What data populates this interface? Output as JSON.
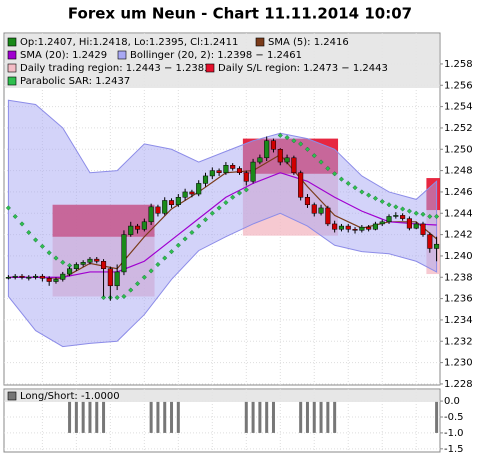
{
  "chart_data": [
    {
      "type": "candlestick",
      "title": "Forex um Neun - Chart 11.11.2014 10:07",
      "ylim": [
        1.2279,
        1.2609
      ],
      "yticks": [
        {
          "value": 1.228,
          "label": "1.228"
        },
        {
          "value": 1.23,
          "label": "1.230"
        },
        {
          "value": 1.232,
          "label": "1.232"
        },
        {
          "value": 1.234,
          "label": "1.234"
        },
        {
          "value": 1.236,
          "label": "1.236"
        },
        {
          "value": 1.238,
          "label": "1.238"
        },
        {
          "value": 1.24,
          "label": "1.240"
        },
        {
          "value": 1.242,
          "label": "1.242"
        },
        {
          "value": 1.244,
          "label": "1.244"
        },
        {
          "value": 1.246,
          "label": "1.246"
        },
        {
          "value": 1.248,
          "label": "1.248"
        },
        {
          "value": 1.25,
          "label": "1.250"
        },
        {
          "value": 1.252,
          "label": "1.252"
        },
        {
          "value": 1.254,
          "label": "1.254"
        },
        {
          "value": 1.256,
          "label": "1.256"
        },
        {
          "value": 1.258,
          "label": "1.258"
        }
      ],
      "grid": true,
      "ohlc": {
        "name": "Op:1.2407, Hi:1.2418, Lo:1.2395, Cl:1.2411",
        "color": "#1a8a1a",
        "down_color": "#d00000",
        "open": [
          1.238,
          1.238,
          1.2381,
          1.238,
          1.238,
          1.2381,
          1.2379,
          1.2376,
          1.2378,
          1.2383,
          1.2388,
          1.2392,
          1.2394,
          1.2397,
          1.2395,
          1.2388,
          1.2372,
          1.2385,
          1.242,
          1.2428,
          1.2425,
          1.2432,
          1.2446,
          1.244,
          1.2452,
          1.2448,
          1.2455,
          1.246,
          1.2458,
          1.2468,
          1.2475,
          1.248,
          1.2478,
          1.2485,
          1.2482,
          1.2478,
          1.247,
          1.2488,
          1.2492,
          1.2508,
          1.25,
          1.2488,
          1.2492,
          1.2478,
          1.2455,
          1.2448,
          1.244,
          1.2445,
          1.243,
          1.2425,
          1.2428,
          1.2425,
          1.2424,
          1.2427,
          1.2425,
          1.243,
          1.2432,
          1.2437,
          1.2438,
          1.2435,
          1.2426,
          1.243,
          1.242,
          1.2407
        ],
        "high": [
          1.2382,
          1.2383,
          1.2383,
          1.2382,
          1.2383,
          1.2383,
          1.2381,
          1.238,
          1.2385,
          1.239,
          1.2394,
          1.2396,
          1.2399,
          1.2399,
          1.2397,
          1.239,
          1.2392,
          1.2424,
          1.2432,
          1.243,
          1.2435,
          1.2449,
          1.2448,
          1.2455,
          1.2454,
          1.2458,
          1.2463,
          1.2462,
          1.2471,
          1.2478,
          1.2483,
          1.2482,
          1.2488,
          1.2487,
          1.2484,
          1.248,
          1.2491,
          1.2495,
          1.2512,
          1.251,
          1.2501,
          1.2495,
          1.2494,
          1.248,
          1.2458,
          1.245,
          1.2448,
          1.2447,
          1.2433,
          1.243,
          1.243,
          1.2427,
          1.2429,
          1.2429,
          1.2432,
          1.2434,
          1.2439,
          1.2441,
          1.244,
          1.2437,
          1.2432,
          1.2432,
          1.2422,
          1.2418
        ],
        "low": [
          1.2378,
          1.2378,
          1.2378,
          1.2377,
          1.2378,
          1.2376,
          1.2372,
          1.2374,
          1.2376,
          1.2381,
          1.2386,
          1.239,
          1.2392,
          1.2393,
          1.2362,
          1.2358,
          1.2368,
          1.2382,
          1.2418,
          1.2421,
          1.2423,
          1.2429,
          1.2437,
          1.2438,
          1.2445,
          1.2446,
          1.2452,
          1.2455,
          1.2456,
          1.2465,
          1.2472,
          1.2475,
          1.2476,
          1.248,
          1.2476,
          1.2466,
          1.2468,
          1.2486,
          1.2489,
          1.2497,
          1.2485,
          1.2486,
          1.2476,
          1.2452,
          1.2445,
          1.2437,
          1.2438,
          1.2428,
          1.2422,
          1.2423,
          1.2422,
          1.2421,
          1.2422,
          1.2423,
          1.2424,
          1.2428,
          1.243,
          1.2435,
          1.2433,
          1.2424,
          1.2425,
          1.2418,
          1.2403,
          1.2395
        ],
        "close": [
          1.238,
          1.2381,
          1.238,
          1.238,
          1.2381,
          1.2379,
          1.2376,
          1.2378,
          1.2383,
          1.2388,
          1.2392,
          1.2394,
          1.2397,
          1.2395,
          1.2388,
          1.2372,
          1.2385,
          1.242,
          1.2428,
          1.2425,
          1.2432,
          1.2446,
          1.244,
          1.2452,
          1.2448,
          1.2455,
          1.246,
          1.2458,
          1.2468,
          1.2475,
          1.248,
          1.2478,
          1.2485,
          1.2482,
          1.2478,
          1.247,
          1.2488,
          1.2492,
          1.2508,
          1.25,
          1.2488,
          1.2492,
          1.2478,
          1.2455,
          1.2448,
          1.244,
          1.2445,
          1.243,
          1.2425,
          1.2428,
          1.2425,
          1.2424,
          1.2427,
          1.2425,
          1.243,
          1.2432,
          1.2437,
          1.2438,
          1.2435,
          1.2426,
          1.243,
          1.242,
          1.2407,
          1.2411
        ]
      },
      "lines": [
        {
          "name": "SMA (5): 1.2416",
          "color": "#7a3b1a",
          "x": [
            0,
            4,
            8,
            12,
            16,
            20,
            24,
            28,
            32,
            36,
            40,
            44,
            48,
            52,
            56,
            60,
            63
          ],
          "values": [
            1.238,
            1.238,
            1.2379,
            1.2393,
            1.2388,
            1.2418,
            1.2444,
            1.246,
            1.2478,
            1.248,
            1.2495,
            1.2465,
            1.2438,
            1.2426,
            1.2432,
            1.2432,
            1.2416
          ]
        },
        {
          "name": "SMA (20): 1.2429",
          "color": "#a000d0",
          "x": [
            0,
            4,
            8,
            12,
            16,
            20,
            24,
            28,
            32,
            36,
            40,
            44,
            48,
            52,
            56,
            60,
            63
          ],
          "values": [
            1.238,
            1.238,
            1.238,
            1.2385,
            1.2385,
            1.2395,
            1.2415,
            1.2435,
            1.2455,
            1.2468,
            1.2478,
            1.247,
            1.2455,
            1.2442,
            1.2432,
            1.243,
            1.2429
          ]
        }
      ],
      "bands": [
        {
          "name": "Bollinger (20, 2): 1.2398 − 1.2461",
          "color": "#a8a8f4",
          "x": [
            0,
            4,
            8,
            12,
            16,
            20,
            24,
            28,
            32,
            36,
            40,
            44,
            48,
            52,
            56,
            60,
            63
          ],
          "upper": [
            1.2546,
            1.2542,
            1.252,
            1.2478,
            1.248,
            1.2505,
            1.25,
            1.2488,
            1.2498,
            1.2508,
            1.2515,
            1.251,
            1.25,
            1.2475,
            1.246,
            1.2453,
            1.247
          ],
          "lower": [
            1.2362,
            1.233,
            1.2315,
            1.2318,
            1.232,
            1.2345,
            1.2378,
            1.2405,
            1.2418,
            1.243,
            1.244,
            1.2428,
            1.241,
            1.2404,
            1.2402,
            1.2395,
            1.2385
          ]
        }
      ],
      "regions": [
        {
          "name": "Daily trading region: 1.2443 − 1.2383",
          "color": "#f4bcc6",
          "areas": [
            {
              "x": [
                7,
                21
              ],
              "high": 1.242,
              "low": 1.2362
            },
            {
              "x": [
                35,
                48
              ],
              "high": 1.2477,
              "low": 1.2419
            },
            {
              "x": [
                62,
                63
              ],
              "high": 1.2443,
              "low": 1.2383
            }
          ]
        },
        {
          "name": "Daily S/L region: 1.2473 − 1.2443",
          "color": "#e4102c",
          "areas": [
            {
              "x": [
                7,
                21
              ],
              "high": 1.2448,
              "low": 1.2418
            },
            {
              "x": [
                35,
                48
              ],
              "high": 1.251,
              "low": 1.2477
            },
            {
              "x": [
                62,
                63
              ],
              "high": 1.2473,
              "low": 1.2443
            }
          ]
        }
      ],
      "sar": {
        "name": "Parabolic SAR: 1.2437",
        "color": "#2fbf4f",
        "values": [
          1.2445,
          1.2437,
          1.243,
          1.2422,
          1.2415,
          1.2409,
          1.2403,
          1.2398,
          1.2394,
          1.2391,
          null,
          null,
          null,
          null,
          1.2361,
          1.2361,
          1.2361,
          1.2362,
          1.2368,
          1.2374,
          1.238,
          1.2386,
          1.2392,
          1.2398,
          1.2404,
          1.241,
          1.2416,
          1.2422,
          1.2428,
          1.2434,
          1.244,
          1.2445,
          1.245,
          1.2455,
          1.2459,
          1.2462,
          null,
          null,
          null,
          null,
          1.2513,
          1.2511,
          1.2508,
          1.2505,
          1.25,
          1.2494,
          1.2488,
          1.2482,
          1.2477,
          1.2472,
          1.2468,
          1.2464,
          1.246,
          1.2457,
          1.2454,
          1.2451,
          1.2448,
          1.2446,
          1.2444,
          1.2442,
          1.244,
          1.2439,
          1.2437,
          1.2437
        ]
      }
    },
    {
      "type": "bar",
      "ylim": [
        -1.6,
        0.38
      ],
      "yticks": [
        {
          "value": 0,
          "label": "0.0"
        },
        {
          "value": -0.5,
          "label": "-0.5"
        },
        {
          "value": -1,
          "label": "-1.0"
        },
        {
          "value": -1.5,
          "label": "-1.5"
        }
      ],
      "series": [
        {
          "name": "Long/Short: -1.0000",
          "color": "#777777",
          "values": [
            0,
            0,
            0,
            0,
            0,
            0,
            0,
            0,
            0,
            -1,
            -1,
            -1,
            -1,
            -1,
            -1,
            0,
            0,
            0,
            0,
            0,
            0,
            -1,
            -1,
            -1,
            -1,
            -1,
            0,
            0,
            0,
            0,
            0,
            0,
            0,
            0,
            0,
            -1,
            -1,
            -1,
            -1,
            -1,
            0,
            0,
            0,
            -1,
            -1,
            -1,
            -1,
            -1,
            -1,
            0,
            0,
            0,
            0,
            0,
            0,
            0,
            0,
            0,
            0,
            0,
            0,
            0,
            0,
            -1
          ]
        }
      ]
    }
  ]
}
